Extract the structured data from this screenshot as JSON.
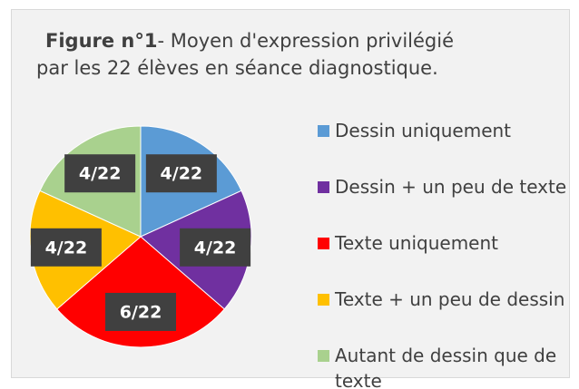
{
  "chart_data": {
    "type": "pie",
    "title": {
      "label": "Figure n°1",
      "lines": [
        "- Moyen d'expression privilégié",
        "par les 22 élèves en séance diagnostique."
      ]
    },
    "categories": [
      "Dessin uniquement",
      "Dessin + un peu de texte",
      "Texte uniquement",
      "Texte + un peu de dessin",
      "Autant de dessin que de texte"
    ],
    "values": [
      4,
      4,
      6,
      4,
      4
    ],
    "value_labels": [
      "4/22",
      "4/22",
      "6/22",
      "4/22",
      "4/22"
    ],
    "colors": [
      "#5b9bd5",
      "#7030a0",
      "#ff0000",
      "#ffc000",
      "#a9d18e"
    ],
    "legend": "right"
  }
}
